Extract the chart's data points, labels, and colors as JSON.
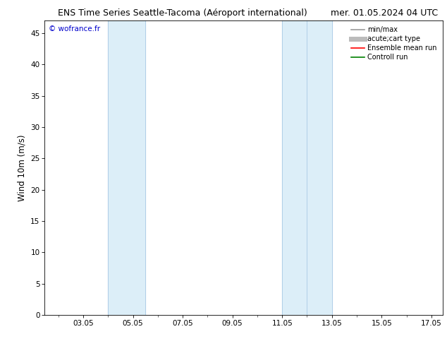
{
  "title_left": "ENS Time Series Seattle-Tacoma (Aéroport international)",
  "title_right": "mer. 01.05.2024 04 UTC",
  "ylabel": "Wind 10m (m/s)",
  "background_color": "#ffffff",
  "plot_bg_color": "#ffffff",
  "x_min": 1.5,
  "x_max": 17.5,
  "y_min": 0,
  "y_max": 47,
  "x_ticks": [
    3.05,
    5.05,
    7.05,
    9.05,
    11.05,
    13.05,
    15.05,
    17.05
  ],
  "x_tick_labels": [
    "03.05",
    "05.05",
    "07.05",
    "09.05",
    "11.05",
    "13.05",
    "15.05",
    "17.05"
  ],
  "y_ticks": [
    0,
    5,
    10,
    15,
    20,
    25,
    30,
    35,
    40,
    45
  ],
  "shaded_bands": [
    {
      "x_start": 4.05,
      "x_end": 5.55,
      "color": "#dceef8",
      "edge_color": "#b0cfe8"
    },
    {
      "x_start": 11.05,
      "x_end": 12.05,
      "color": "#dceef8",
      "edge_color": "#b0cfe8"
    },
    {
      "x_start": 12.05,
      "x_end": 13.05,
      "color": "#dceef8",
      "edge_color": "#b0cfe8"
    }
  ],
  "watermark_text": "© wofrance.fr",
  "watermark_color": "#0000cc",
  "legend_items": [
    {
      "label": "min/max",
      "color": "#999999",
      "lw": 1.2,
      "ls": "-"
    },
    {
      "label": "acute;cart type",
      "color": "#bbbbbb",
      "lw": 5,
      "ls": "-"
    },
    {
      "label": "Ensemble mean run",
      "color": "#ff0000",
      "lw": 1.2,
      "ls": "-"
    },
    {
      "label": "Controll run",
      "color": "#008000",
      "lw": 1.2,
      "ls": "-"
    }
  ],
  "title_fontsize": 9,
  "tick_fontsize": 7.5,
  "ylabel_fontsize": 8.5,
  "watermark_fontsize": 7.5,
  "legend_fontsize": 7
}
